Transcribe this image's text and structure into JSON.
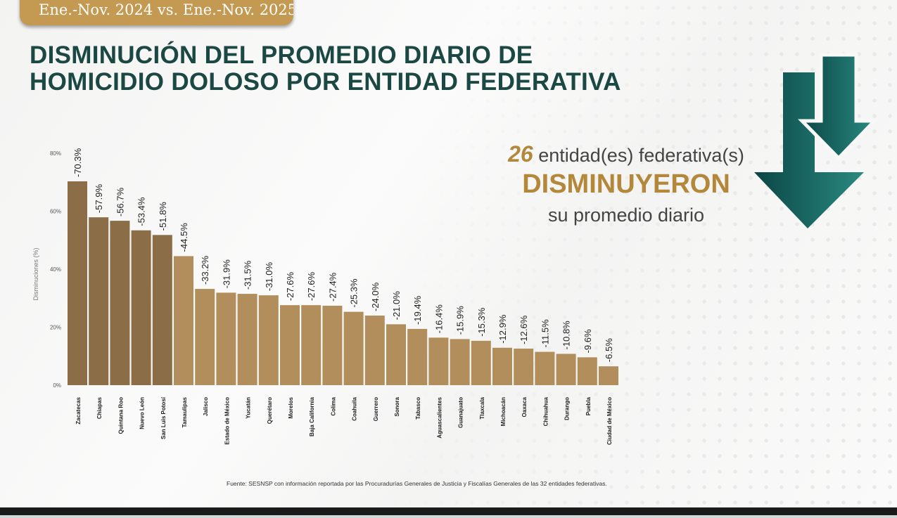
{
  "header": {
    "period_badge": "Ene.-Nov. 2024 vs. Ene.-Nov. 2025",
    "title_line1": "DISMINUCIÓN DEL PROMEDIO DIARIO DE",
    "title_line2": "HOMICIDIO DOLOSO POR ENTIDAD FEDERATIVA"
  },
  "kpi": {
    "count": "26",
    "line1": "entidad(es) federativa(s)",
    "line2": "DISMINUYERON",
    "line3": "su promedio diario",
    "icon": "double-down-arrow-icon"
  },
  "source": "Fuente: SESNSP con información reportada por las Procuradurías Generales de Justicia y Fiscalías Generales de las 32 entidades federativas.",
  "colors": {
    "title": "#1c4844",
    "badge": "#c49a53",
    "bar_top5": "#8b6d47",
    "bar_rest": "#b38e5d",
    "accent": "#b3883b",
    "arrow_dark": "#0b4646",
    "arrow_light": "#2a8a80"
  },
  "chart_data": {
    "type": "bar",
    "ylabel": "Disminuciones (%)",
    "ylim": [
      0,
      80
    ],
    "yticks": [
      "0%",
      "20%",
      "40%",
      "60%",
      "80%"
    ],
    "grid": false,
    "categories": [
      "Zacatecas",
      "Chiapas",
      "Quintana Roo",
      "Nuevo León",
      "San Luis Potosí",
      "Tamaulipas",
      "Jalisco",
      "Estado de México",
      "Yucatán",
      "Querétaro",
      "Morelos",
      "Baja California",
      "Colima",
      "Coahuila",
      "Guerrero",
      "Sonora",
      "Tabasco",
      "Aguascalientes",
      "Guanajuato",
      "Tlaxcala",
      "Michoacán",
      "Oaxaca",
      "Chihuahua",
      "Durango",
      "Puebla",
      "Ciudad de México"
    ],
    "values": [
      70.3,
      57.9,
      56.7,
      53.4,
      51.8,
      44.5,
      33.2,
      31.9,
      31.5,
      31.0,
      27.6,
      27.6,
      27.4,
      25.3,
      24.0,
      21.0,
      19.4,
      16.4,
      15.9,
      15.3,
      12.9,
      12.6,
      11.5,
      10.8,
      9.6,
      6.5
    ],
    "data_labels": [
      "-70.3%",
      "-57.9%",
      "-56.7%",
      "-53.4%",
      "-51.8%",
      "-44.5%",
      "-33.2%",
      "-31.9%",
      "-31.5%",
      "-31.0%",
      "-27.6%",
      "-27.6%",
      "-27.4%",
      "-25.3%",
      "-24.0%",
      "-21.0%",
      "-19.4%",
      "-16.4%",
      "-15.9%",
      "-15.3%",
      "-12.9%",
      "-12.6%",
      "-11.5%",
      "-10.8%",
      "-9.6%",
      "-6.5%"
    ],
    "highlighted_top": 5
  }
}
